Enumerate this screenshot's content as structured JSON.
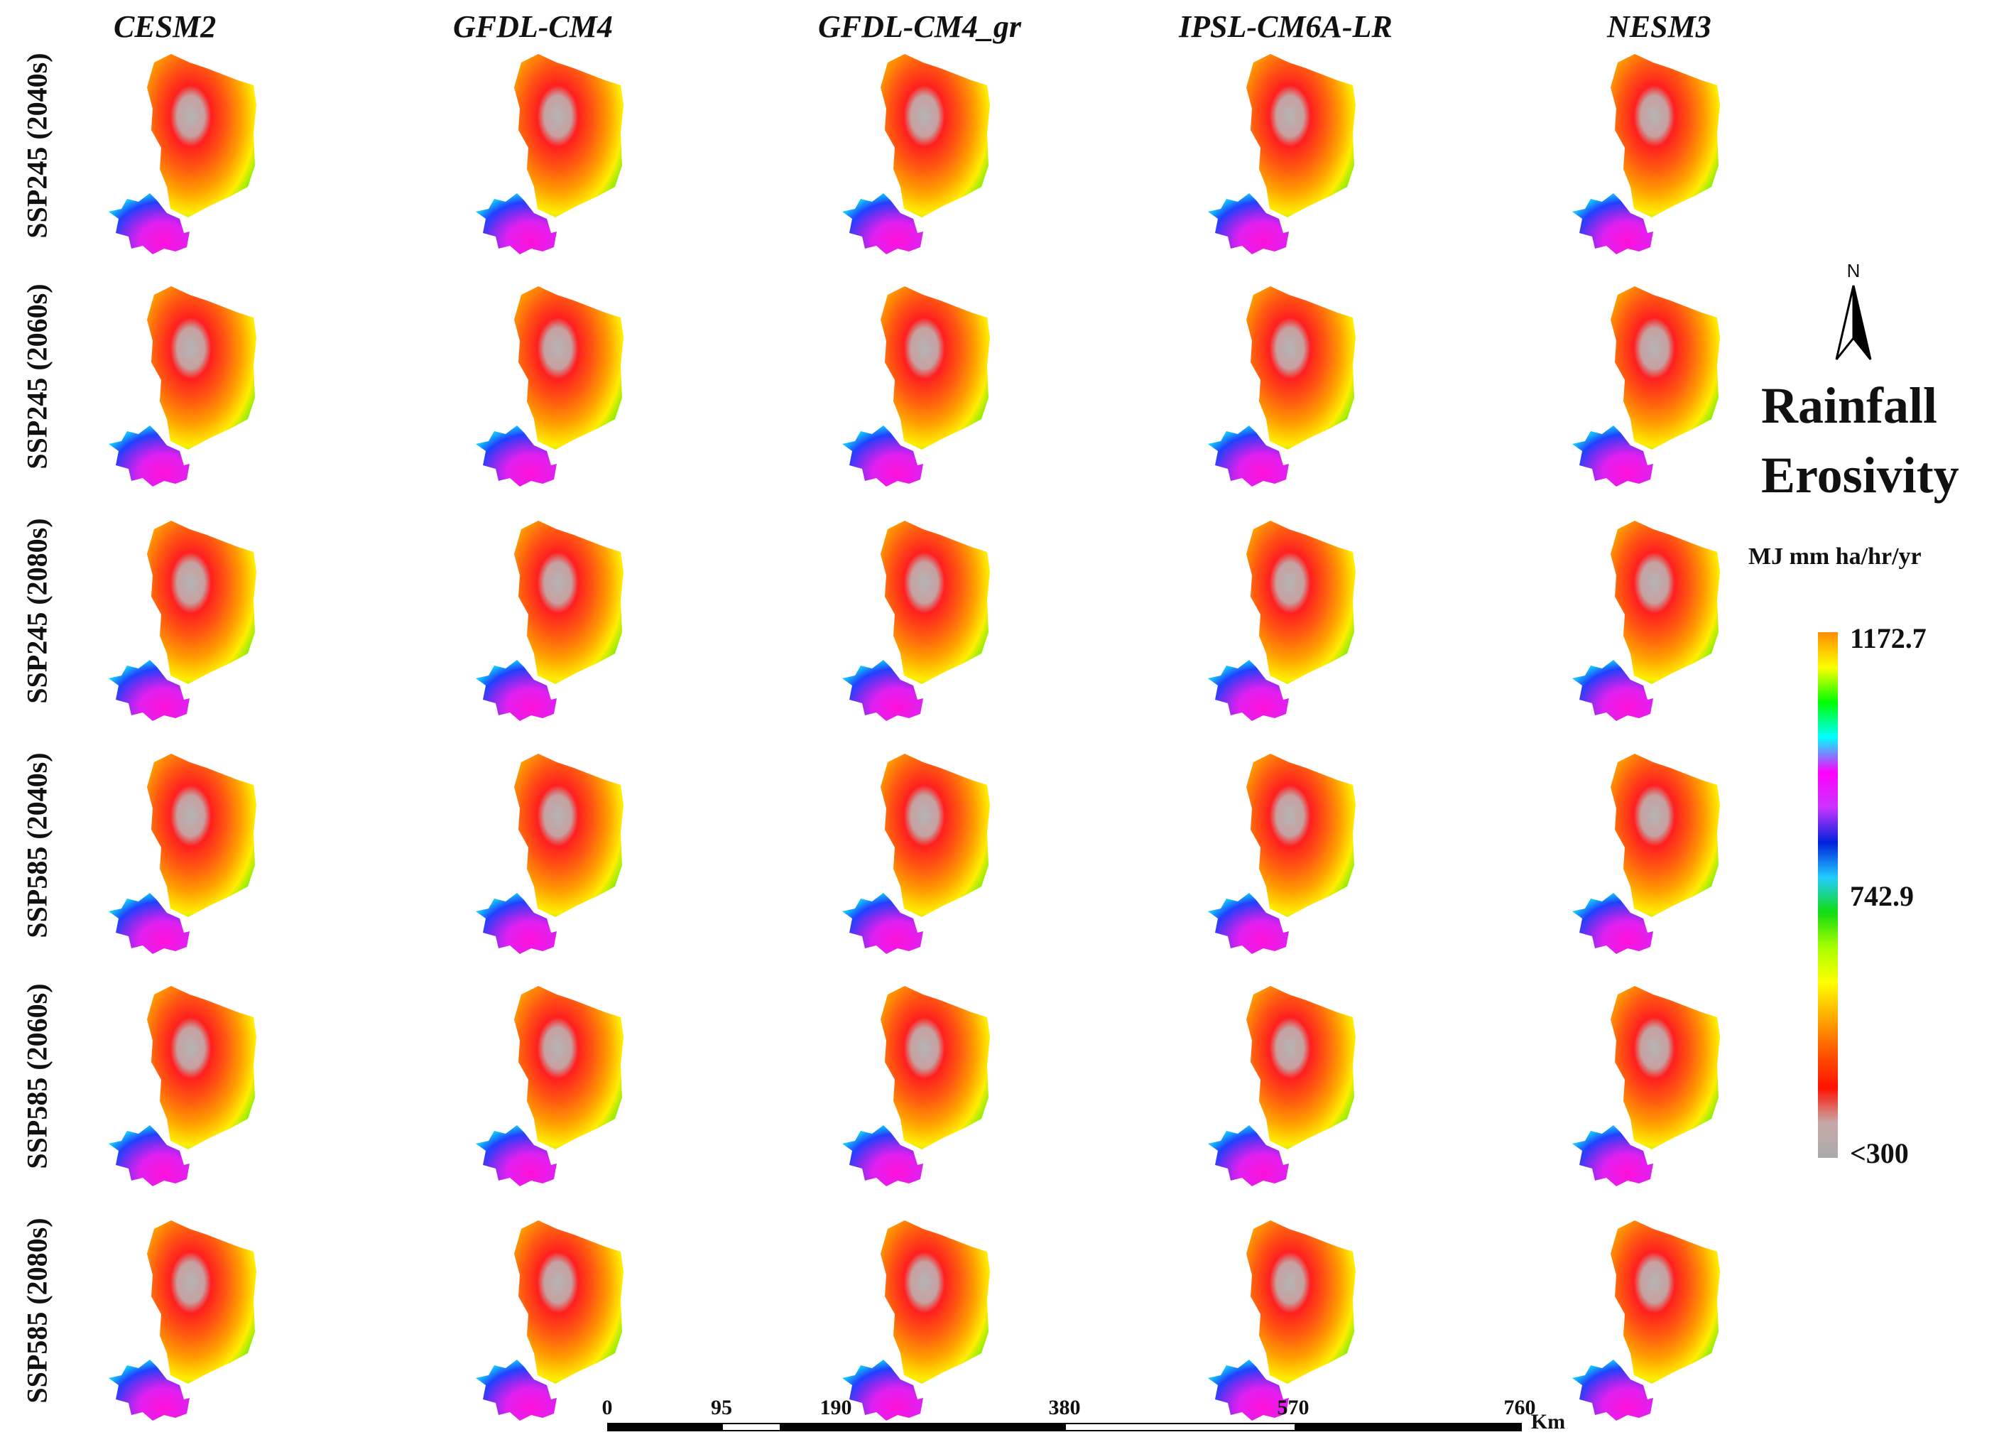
{
  "columns": [
    "CESM2",
    "GFDL-CM4",
    "GFDL-CM4_gr",
    "IPSL-CM6A-LR",
    "NESM3"
  ],
  "rows": [
    "SSP245 (2040s)",
    "SSP245 (2060s)",
    "SSP245 (2080s)",
    "SSP585 (2040s)",
    "SSP585 (2060s)",
    "SSP585 (2080s)"
  ],
  "legend": {
    "title_line1": "Rainfall",
    "title_line2": "Erosivity",
    "units": "MJ mm ha/hr/yr",
    "max_label": "1172.7",
    "mid_label": "742.9",
    "min_label": "<300",
    "gradient_colors": [
      "#ff8c00",
      "#ffff00",
      "#00ff00",
      "#00ffff",
      "#ff00ff",
      "#cc33ff",
      "#0022dd",
      "#22ccff",
      "#11dd11",
      "#aaff00",
      "#ffff00",
      "#ffaa00",
      "#ff5500",
      "#ff1100",
      "#c8a8a8",
      "#aaaaaa"
    ]
  },
  "north_arrow": {
    "label": "N"
  },
  "scale_bar": {
    "ticks": [
      "0",
      "95",
      "190",
      "380",
      "570",
      "760"
    ],
    "unit": "Km"
  }
}
